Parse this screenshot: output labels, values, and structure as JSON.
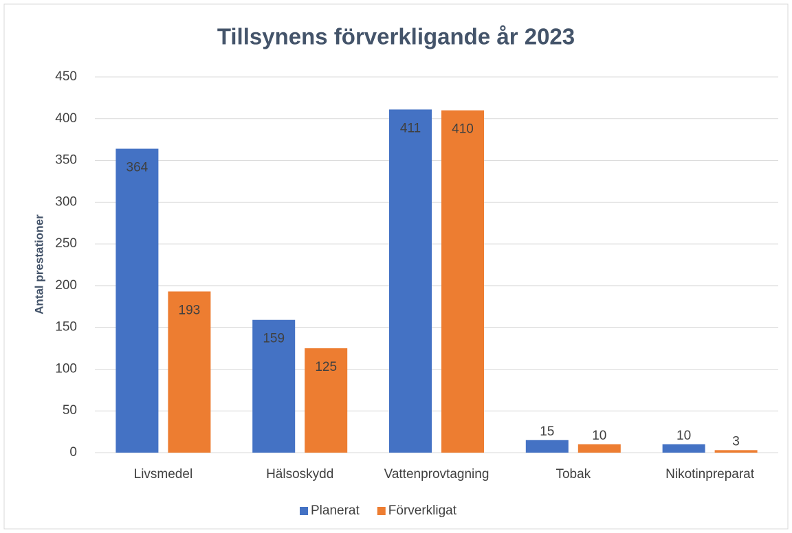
{
  "chart_data": {
    "type": "bar",
    "title": "Tillsynens förverkligande år 2023",
    "y_label": "Antal prestationer",
    "categories": [
      "Livsmedel",
      "Hälsoskydd",
      "Vattenprovtagning",
      "Tobak",
      "Nikotinpreparat"
    ],
    "series": [
      {
        "name": "Planerat",
        "color": "#4472c4",
        "values": [
          364,
          159,
          411,
          15,
          10
        ]
      },
      {
        "name": "Förverkligat",
        "color": "#ed7d31",
        "values": [
          193,
          125,
          410,
          10,
          3
        ]
      }
    ],
    "ylim": [
      0,
      450
    ],
    "yticks": [
      0,
      50,
      100,
      150,
      200,
      250,
      300,
      350,
      400,
      450
    ],
    "grid": true,
    "legend": "bottom"
  }
}
